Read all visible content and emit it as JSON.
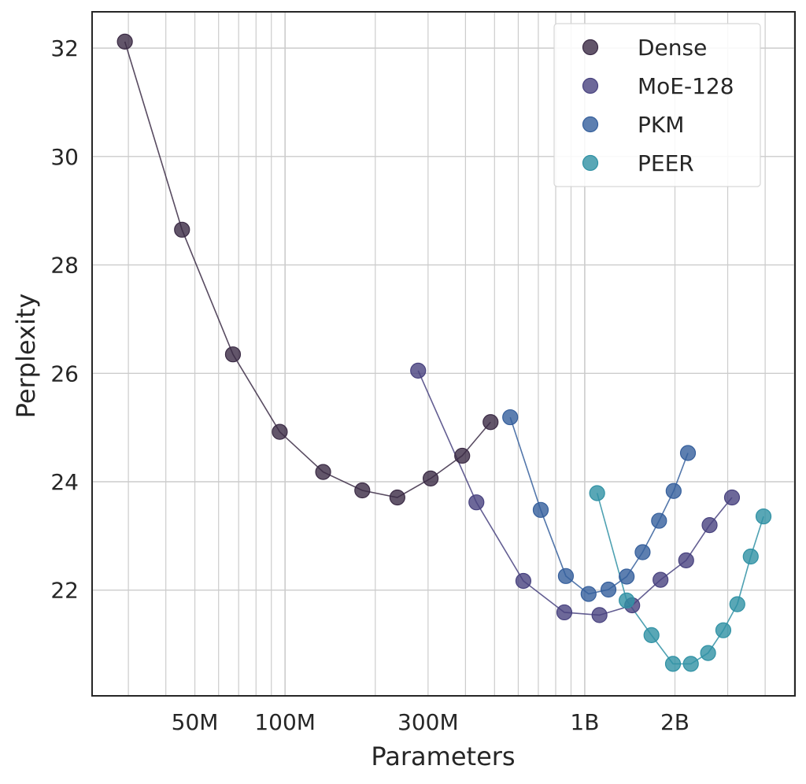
{
  "chart_data": {
    "type": "line",
    "title": "",
    "xlabel": "Parameters",
    "ylabel": "Perplexity",
    "xscale": "log",
    "xlim": [
      22700000,
      5030000000
    ],
    "ylim": [
      20.05,
      32.67
    ],
    "grid": true,
    "legend_position": "top-right",
    "x_ticks": [
      {
        "value": 50000000,
        "label": "50M"
      },
      {
        "value": 100000000,
        "label": "100M"
      },
      {
        "value": 300000000,
        "label": "300M"
      },
      {
        "value": 1000000000,
        "label": "1B"
      },
      {
        "value": 2000000000,
        "label": "2B"
      }
    ],
    "y_ticks": [
      {
        "value": 22,
        "label": "22"
      },
      {
        "value": 24,
        "label": "24"
      },
      {
        "value": 26,
        "label": "26"
      },
      {
        "value": 28,
        "label": "28"
      },
      {
        "value": 30,
        "label": "30"
      },
      {
        "value": 32,
        "label": "32"
      }
    ],
    "series": [
      {
        "name": "Dense",
        "color": "#3b2b45",
        "x": [
          29200000,
          45300000,
          67000000,
          96000000,
          134000000,
          181000000,
          237000000,
          306000000,
          390000000,
          485000000
        ],
        "y": [
          32.12,
          28.65,
          26.35,
          24.92,
          24.18,
          23.84,
          23.71,
          24.06,
          24.48,
          25.1
        ]
      },
      {
        "name": "MoE-128",
        "color": "#48427f",
        "x": [
          278000000,
          435000000,
          624000000,
          855000000,
          1120000000,
          1440000000,
          1790000000,
          2180000000,
          2610000000,
          3100000000
        ],
        "y": [
          26.05,
          23.62,
          22.17,
          21.59,
          21.54,
          21.72,
          22.19,
          22.55,
          23.2,
          23.71
        ]
      },
      {
        "name": "PKM",
        "color": "#355f9c",
        "x": [
          564000000,
          713000000,
          865000000,
          1030000000,
          1200000000,
          1380000000,
          1560000000,
          1770000000,
          1980000000,
          2210000000
        ],
        "y": [
          25.19,
          23.48,
          22.26,
          21.93,
          22.01,
          22.25,
          22.7,
          23.28,
          23.83,
          24.53
        ]
      },
      {
        "name": "PEER",
        "color": "#2f91a4",
        "x": [
          1100000000,
          1380000000,
          1670000000,
          1970000000,
          2260000000,
          2580000000,
          2900000000,
          3230000000,
          3580000000,
          3950000000
        ],
        "y": [
          23.79,
          21.81,
          21.17,
          20.64,
          20.64,
          20.84,
          21.26,
          21.74,
          22.62,
          23.36
        ]
      }
    ]
  }
}
